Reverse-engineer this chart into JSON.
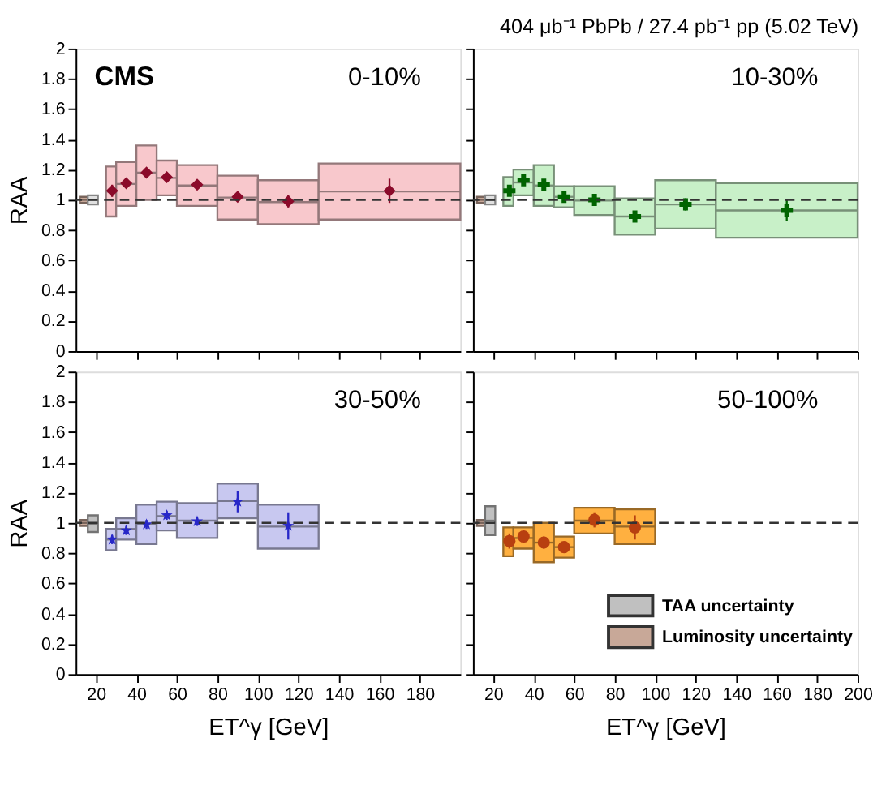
{
  "chart_data": [
    {
      "type": "scatter",
      "ylabel": "RAA",
      "xlim": [
        10,
        200
      ],
      "ylim": [
        0,
        2
      ],
      "xticks": [
        20,
        40,
        60,
        80,
        100,
        120,
        140,
        160,
        180
      ],
      "yticks": [
        0,
        0.2,
        0.4,
        0.6,
        0.8,
        1,
        1.2,
        1.4,
        1.6,
        1.8,
        2
      ],
      "tick_labels": "y",
      "annotations": [
        "CMS",
        "0-10%"
      ],
      "ref_lines": [
        {
          "axis": "y",
          "value": 1,
          "color": "#333333",
          "line_style": "dashed"
        }
      ],
      "series": [
        {
          "type": "bar",
          "color": "#c8a898",
          "x": [
            14
          ],
          "xerrors": [
            [
              12,
              16
            ]
          ],
          "base": [
            0.98
          ],
          "values": [
            0.04
          ]
        },
        {
          "type": "bar",
          "color": "#e0e0e0",
          "x": [
            18.5
          ],
          "xerrors": [
            [
              16,
              21
            ]
          ],
          "base": [
            0.97
          ],
          "values": [
            0.06
          ]
        },
        {
          "type": "bar",
          "color": "#f8c8cc",
          "x": [
            28,
            35,
            45,
            55,
            70,
            90,
            115,
            165
          ],
          "xerrors": [
            [
              25,
              30
            ],
            [
              30,
              40
            ],
            [
              40,
              50
            ],
            [
              50,
              60
            ],
            [
              60,
              80
            ],
            [
              80,
              100
            ],
            [
              100,
              130
            ],
            [
              130,
              200
            ]
          ],
          "base": [
            0.89,
            0.96,
            1.0,
            1.03,
            0.96,
            0.87,
            0.84,
            0.87
          ],
          "values": [
            0.33,
            0.29,
            0.36,
            0.23,
            0.27,
            0.29,
            0.29,
            0.37
          ]
        },
        {
          "type": "scatter",
          "color": "#8b0a2a",
          "marker": "diamond",
          "x": [
            28,
            35,
            45,
            55,
            70,
            90,
            115,
            165
          ],
          "values": [
            1.06,
            1.11,
            1.18,
            1.15,
            1.1,
            1.02,
            0.99,
            1.06
          ],
          "errors": [
            0.04,
            0.03,
            0.03,
            0.03,
            0.03,
            0.03,
            0.04,
            0.08
          ]
        }
      ]
    },
    {
      "type": "scatter",
      "title": "404 μb⁻¹ PbPb / 27.4 pb⁻¹ pp (5.02 TeV)",
      "xlim": [
        10,
        200
      ],
      "ylim": [
        0,
        2
      ],
      "xticks": [
        20,
        40,
        60,
        80,
        100,
        120,
        140,
        160,
        180,
        200
      ],
      "yticks": [
        0,
        0.2,
        0.4,
        0.6,
        0.8,
        1,
        1.2,
        1.4,
        1.6,
        1.8,
        2
      ],
      "tick_labels": false,
      "annotations": [
        "10-30%"
      ],
      "ref_lines": [
        {
          "axis": "y",
          "value": 1,
          "color": "#333333",
          "line_style": "dashed"
        }
      ],
      "series": [
        {
          "type": "bar",
          "color": "#c8a898",
          "x": [
            14
          ],
          "xerrors": [
            [
              12,
              16
            ]
          ],
          "base": [
            0.98
          ],
          "values": [
            0.04
          ]
        },
        {
          "type": "bar",
          "color": "#e0e0e0",
          "x": [
            18.5
          ],
          "xerrors": [
            [
              16,
              21
            ]
          ],
          "base": [
            0.97
          ],
          "values": [
            0.06
          ]
        },
        {
          "type": "bar",
          "color": "#c8f0c8",
          "x": [
            28,
            35,
            45,
            55,
            70,
            90,
            115,
            165
          ],
          "xerrors": [
            [
              25,
              30
            ],
            [
              30,
              40
            ],
            [
              40,
              50
            ],
            [
              50,
              60
            ],
            [
              60,
              80
            ],
            [
              80,
              100
            ],
            [
              100,
              130
            ],
            [
              130,
              200
            ]
          ],
          "base": [
            0.96,
            1.03,
            0.96,
            0.95,
            0.9,
            0.77,
            0.81,
            0.75
          ],
          "values": [
            0.19,
            0.17,
            0.27,
            0.14,
            0.19,
            0.24,
            0.32,
            0.36
          ]
        },
        {
          "type": "scatter",
          "color": "#006400",
          "marker": "cross",
          "x": [
            28,
            35,
            45,
            55,
            70,
            90,
            115,
            165
          ],
          "values": [
            1.06,
            1.13,
            1.1,
            1.02,
            1.0,
            0.89,
            0.97,
            0.93
          ],
          "errors": [
            0.03,
            0.03,
            0.03,
            0.03,
            0.03,
            0.03,
            0.04,
            0.07
          ]
        }
      ]
    },
    {
      "type": "scatter",
      "ylabel": "RAA",
      "xlabel": "ET^γ [GeV]",
      "xlim": [
        10,
        200
      ],
      "ylim": [
        0,
        2
      ],
      "xticks": [
        20,
        40,
        60,
        80,
        100,
        120,
        140,
        160,
        180
      ],
      "yticks": [
        0,
        0.2,
        0.4,
        0.6,
        0.8,
        1,
        1.2,
        1.4,
        1.6,
        1.8,
        2
      ],
      "annotations": [
        "30-50%"
      ],
      "ref_lines": [
        {
          "axis": "y",
          "value": 1,
          "color": "#333333",
          "line_style": "dashed"
        }
      ],
      "series": [
        {
          "type": "bar",
          "color": "#c8a898",
          "x": [
            14
          ],
          "xerrors": [
            [
              12,
              16
            ]
          ],
          "base": [
            0.98
          ],
          "values": [
            0.04
          ]
        },
        {
          "type": "bar",
          "color": "#c0c0c0",
          "x": [
            18.5
          ],
          "xerrors": [
            [
              16,
              21
            ]
          ],
          "base": [
            0.94
          ],
          "values": [
            0.11
          ]
        },
        {
          "type": "bar",
          "color": "#c8c8f0",
          "x": [
            28,
            35,
            45,
            55,
            70,
            90,
            115
          ],
          "xerrors": [
            [
              25,
              30
            ],
            [
              30,
              40
            ],
            [
              40,
              50
            ],
            [
              50,
              60
            ],
            [
              60,
              80
            ],
            [
              80,
              100
            ],
            [
              100,
              130
            ]
          ],
          "base": [
            0.82,
            0.89,
            0.86,
            0.95,
            0.9,
            1.03,
            0.83
          ],
          "values": [
            0.14,
            0.14,
            0.26,
            0.19,
            0.23,
            0.23,
            0.29
          ]
        },
        {
          "type": "scatter",
          "color": "#2828c8",
          "marker": "star",
          "x": [
            28,
            35,
            45,
            55,
            70,
            90,
            115
          ],
          "values": [
            0.89,
            0.95,
            0.99,
            1.05,
            1.01,
            1.14,
            0.98
          ],
          "errors": [
            0.03,
            0.03,
            0.03,
            0.03,
            0.03,
            0.07,
            0.09
          ]
        }
      ]
    },
    {
      "type": "scatter",
      "xlabel": "ET^γ [GeV]",
      "xlim": [
        10,
        200
      ],
      "ylim": [
        0,
        2
      ],
      "xticks": [
        20,
        40,
        60,
        80,
        100,
        120,
        140,
        160,
        180,
        200
      ],
      "yticks": [
        0,
        0.2,
        0.4,
        0.6,
        0.8,
        1,
        1.2,
        1.4,
        1.6,
        1.8,
        2
      ],
      "tick_labels": "x",
      "annotations": [
        "50-100%"
      ],
      "legend": "bottom right",
      "ref_lines": [
        {
          "axis": "y",
          "value": 1,
          "color": "#333333",
          "line_style": "dashed"
        }
      ],
      "series": [
        {
          "type": "bar",
          "name": "Luminosity uncertainty",
          "color": "#c8a898",
          "x": [
            14
          ],
          "xerrors": [
            [
              12,
              16
            ]
          ],
          "base": [
            0.98
          ],
          "values": [
            0.04
          ]
        },
        {
          "type": "bar",
          "name": "TAA uncertainty",
          "color": "#c0c0c0",
          "x": [
            18.5
          ],
          "xerrors": [
            [
              16,
              21
            ]
          ],
          "base": [
            0.92
          ],
          "values": [
            0.19
          ]
        },
        {
          "type": "bar",
          "color": "#ffb040",
          "x": [
            28,
            35,
            45,
            55,
            70,
            90
          ],
          "xerrors": [
            [
              25,
              30
            ],
            [
              30,
              40
            ],
            [
              40,
              50
            ],
            [
              50,
              60
            ],
            [
              60,
              80
            ],
            [
              80,
              100
            ]
          ],
          "base": [
            0.78,
            0.83,
            0.74,
            0.77,
            0.93,
            0.86
          ],
          "values": [
            0.19,
            0.14,
            0.26,
            0.14,
            0.17,
            0.23
          ]
        },
        {
          "type": "scatter",
          "color": "#b84010",
          "marker": "circle",
          "x": [
            28,
            35,
            45,
            55,
            70,
            90
          ],
          "values": [
            0.88,
            0.91,
            0.87,
            0.84,
            1.02,
            0.97
          ],
          "errors": [
            0.05,
            0.04,
            0.04,
            0.03,
            0.05,
            0.08
          ]
        }
      ]
    }
  ]
}
